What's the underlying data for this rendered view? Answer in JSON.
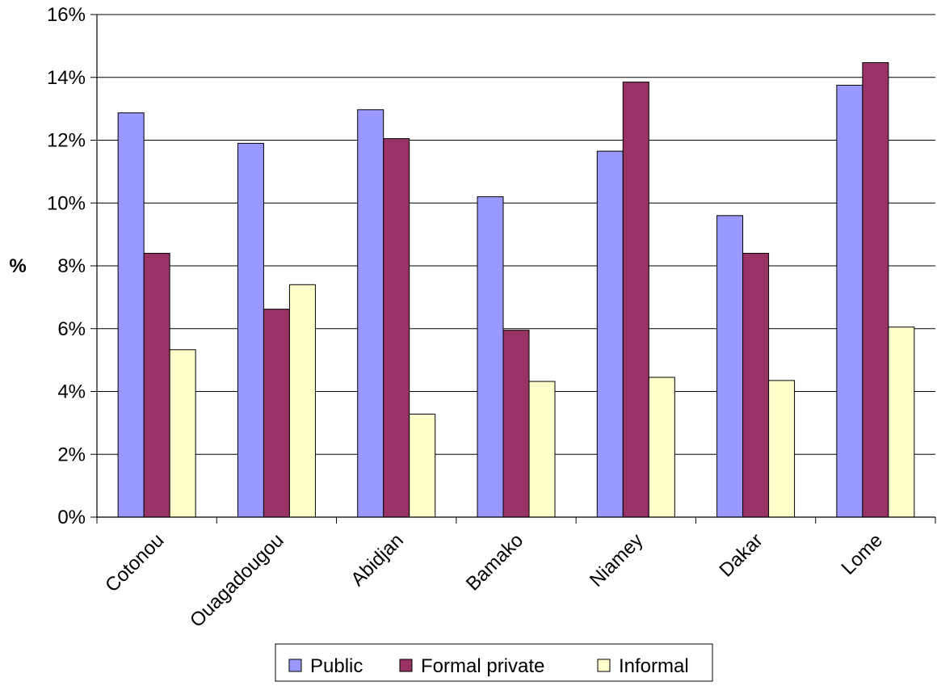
{
  "chart_data": {
    "type": "bar",
    "title": "",
    "xlabel": "",
    "ylabel": "%",
    "categories": [
      "Cotonou",
      "Ouagadougou",
      "Abidjan",
      "Bamako",
      "Niamey",
      "Dakar",
      "Lome"
    ],
    "series": [
      {
        "name": "Public",
        "color": "#9999ff",
        "values": [
          12.87,
          11.9,
          12.97,
          10.2,
          11.65,
          9.6,
          13.75
        ]
      },
      {
        "name": "Formal private",
        "color": "#993366",
        "values": [
          8.4,
          6.62,
          12.05,
          5.95,
          13.85,
          8.4,
          14.47
        ]
      },
      {
        "name": "Informal",
        "color": "#ffffcc",
        "values": [
          5.33,
          7.4,
          3.28,
          4.32,
          4.45,
          4.35,
          6.05
        ]
      }
    ],
    "ylim": [
      0,
      16
    ],
    "yticks": [
      0,
      2,
      4,
      6,
      8,
      10,
      12,
      14,
      16
    ],
    "ytick_format": "percent",
    "grid": true,
    "legend_position": "bottom"
  }
}
